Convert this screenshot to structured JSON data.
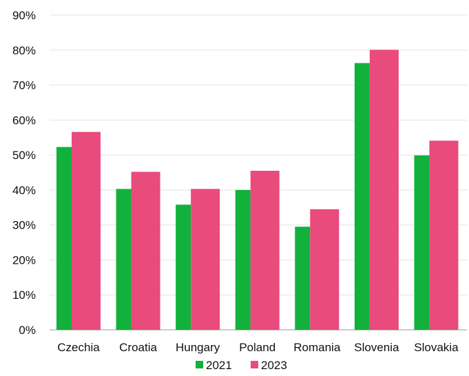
{
  "chart_data": {
    "type": "bar",
    "categories": [
      "Czechia",
      "Croatia",
      "Hungary",
      "Poland",
      "Romania",
      "Slovenia",
      "Slovakia"
    ],
    "series": [
      {
        "name": "2021",
        "color": "#12B13C",
        "values": [
          52.3,
          40.3,
          35.8,
          40.0,
          29.5,
          76.3,
          49.9
        ]
      },
      {
        "name": "2023",
        "color": "#E94B7C",
        "values": [
          56.6,
          45.2,
          40.3,
          45.5,
          34.5,
          80.1,
          54.1
        ]
      }
    ],
    "y_ticks": [
      "0%",
      "10%",
      "20%",
      "30%",
      "40%",
      "50%",
      "60%",
      "70%",
      "80%",
      "90%"
    ],
    "ylim": [
      0,
      90
    ],
    "grid": true,
    "legend": "bottom",
    "title": "",
    "xlabel": "",
    "ylabel": ""
  }
}
